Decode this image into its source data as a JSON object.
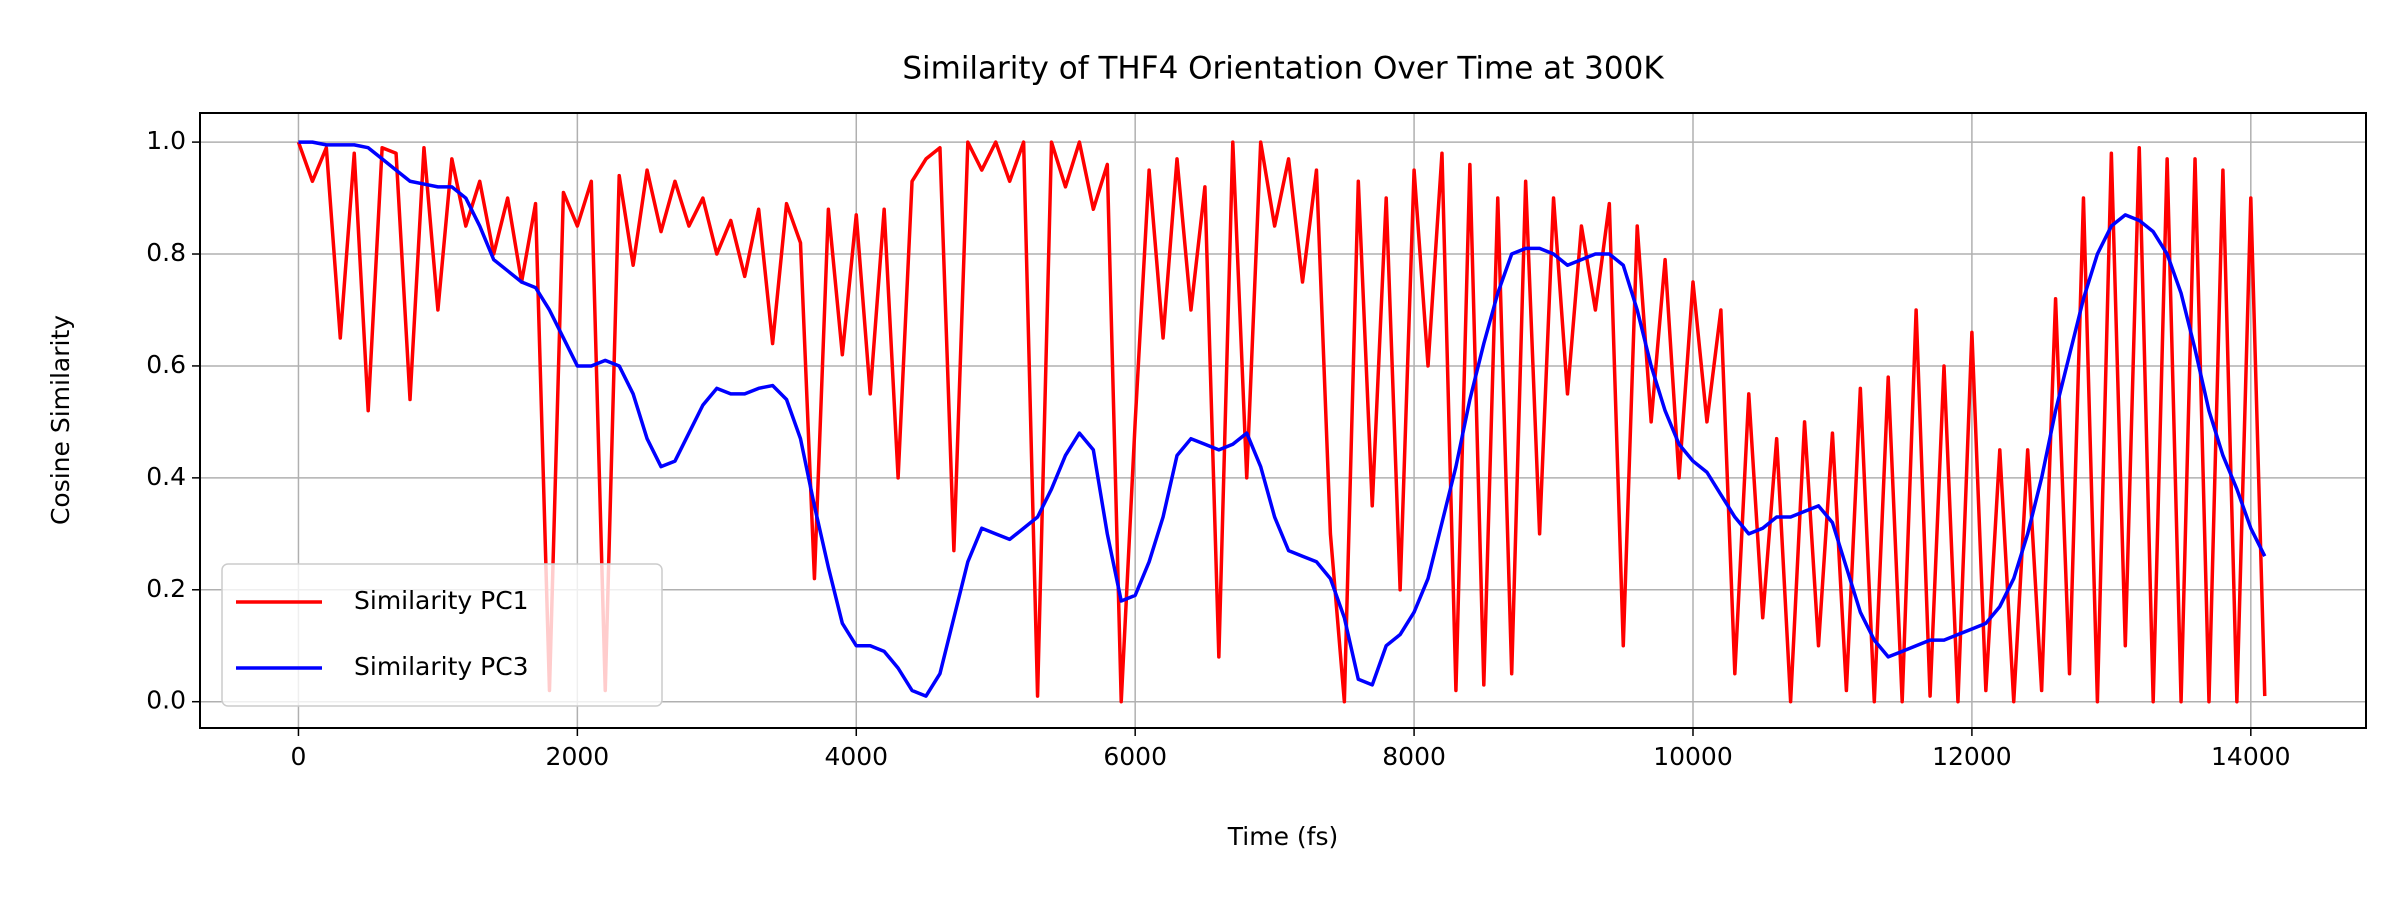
{
  "chart_data": {
    "type": "line",
    "title": "Similarity of THF4 Orientation Over Time at 300K",
    "x_label": "Time (fs)",
    "y_label": "Cosine Similarity",
    "x": [
      0,
      100,
      200,
      300,
      400,
      500,
      600,
      700,
      800,
      900,
      1000,
      1100,
      1200,
      1300,
      1400,
      1500,
      1600,
      1700,
      1800,
      1900,
      2000,
      2100,
      2200,
      2300,
      2400,
      2500,
      2600,
      2700,
      2800,
      2900,
      3000,
      3100,
      3200,
      3300,
      3400,
      3500,
      3600,
      3700,
      3800,
      3900,
      4000,
      4100,
      4200,
      4300,
      4400,
      4500,
      4600,
      4700,
      4800,
      4900,
      5000,
      5100,
      5200,
      5300,
      5400,
      5500,
      5600,
      5700,
      5800,
      5900,
      6000,
      6100,
      6200,
      6300,
      6400,
      6500,
      6600,
      6700,
      6800,
      6900,
      7000,
      7100,
      7200,
      7300,
      7400,
      7500,
      7600,
      7700,
      7800,
      7900,
      8000,
      8100,
      8200,
      8300,
      8400,
      8500,
      8600,
      8700,
      8800,
      8900,
      9000,
      9100,
      9200,
      9300,
      9400,
      9500,
      9600,
      9700,
      9800,
      9900,
      10000,
      10100,
      10200,
      10300,
      10400,
      10500,
      10600,
      10700,
      10800,
      10900,
      11000,
      11100,
      11200,
      11300,
      11400,
      11500,
      11600,
      11700,
      11800,
      11900,
      12000,
      12100,
      12200,
      12300,
      12400,
      12500,
      12600,
      12700,
      12800,
      12900,
      13000,
      13100,
      13200,
      13300,
      13400,
      13500,
      13600,
      13700,
      13800,
      13900,
      14000,
      14100
    ],
    "series": [
      {
        "name": "Similarity PC1",
        "color": "#ff0000",
        "values": [
          1.0,
          0.93,
          0.99,
          0.65,
          0.98,
          0.52,
          0.99,
          0.98,
          0.54,
          0.99,
          0.7,
          0.97,
          0.85,
          0.93,
          0.8,
          0.9,
          0.75,
          0.89,
          0.02,
          0.91,
          0.85,
          0.93,
          0.02,
          0.94,
          0.78,
          0.95,
          0.84,
          0.93,
          0.85,
          0.9,
          0.8,
          0.86,
          0.76,
          0.88,
          0.64,
          0.89,
          0.82,
          0.22,
          0.88,
          0.62,
          0.87,
          0.55,
          0.88,
          0.4,
          0.93,
          0.97,
          0.99,
          0.27,
          1.0,
          0.95,
          1.0,
          0.93,
          1.0,
          0.01,
          1.0,
          0.92,
          1.0,
          0.88,
          0.96,
          0.0,
          0.5,
          0.95,
          0.65,
          0.97,
          0.7,
          0.92,
          0.08,
          1.0,
          0.4,
          1.0,
          0.85,
          0.97,
          0.75,
          0.95,
          0.3,
          0.0,
          0.93,
          0.35,
          0.9,
          0.2,
          0.95,
          0.6,
          0.98,
          0.02,
          0.96,
          0.03,
          0.9,
          0.05,
          0.93,
          0.3,
          0.9,
          0.55,
          0.85,
          0.7,
          0.89,
          0.1,
          0.85,
          0.5,
          0.79,
          0.4,
          0.75,
          0.5,
          0.7,
          0.05,
          0.55,
          0.15,
          0.47,
          0.0,
          0.5,
          0.1,
          0.48,
          0.02,
          0.56,
          0.0,
          0.58,
          0.0,
          0.7,
          0.01,
          0.6,
          0.0,
          0.66,
          0.02,
          0.45,
          0.0,
          0.45,
          0.02,
          0.72,
          0.05,
          0.9,
          0.0,
          0.98,
          0.1,
          0.99,
          0.0,
          0.97,
          0.0,
          0.97,
          0.0,
          0.95,
          0.0,
          0.9,
          0.01
        ]
      },
      {
        "name": "Similarity PC3",
        "color": "#0000ff",
        "values": [
          1.0,
          1.0,
          0.995,
          0.995,
          0.995,
          0.99,
          0.97,
          0.95,
          0.93,
          0.925,
          0.92,
          0.92,
          0.9,
          0.85,
          0.79,
          0.77,
          0.75,
          0.74,
          0.7,
          0.65,
          0.6,
          0.6,
          0.61,
          0.6,
          0.55,
          0.47,
          0.42,
          0.43,
          0.48,
          0.53,
          0.56,
          0.55,
          0.55,
          0.56,
          0.565,
          0.54,
          0.47,
          0.35,
          0.24,
          0.14,
          0.1,
          0.1,
          0.09,
          0.06,
          0.02,
          0.01,
          0.05,
          0.15,
          0.25,
          0.31,
          0.3,
          0.29,
          0.31,
          0.33,
          0.38,
          0.44,
          0.48,
          0.45,
          0.3,
          0.18,
          0.19,
          0.25,
          0.33,
          0.44,
          0.47,
          0.46,
          0.45,
          0.46,
          0.48,
          0.42,
          0.33,
          0.27,
          0.26,
          0.25,
          0.22,
          0.15,
          0.04,
          0.03,
          0.1,
          0.12,
          0.16,
          0.22,
          0.32,
          0.42,
          0.54,
          0.64,
          0.73,
          0.8,
          0.81,
          0.81,
          0.8,
          0.78,
          0.79,
          0.8,
          0.8,
          0.78,
          0.7,
          0.6,
          0.52,
          0.46,
          0.43,
          0.41,
          0.37,
          0.33,
          0.3,
          0.31,
          0.33,
          0.33,
          0.34,
          0.35,
          0.32,
          0.24,
          0.16,
          0.11,
          0.08,
          0.09,
          0.1,
          0.11,
          0.11,
          0.12,
          0.13,
          0.14,
          0.17,
          0.22,
          0.3,
          0.4,
          0.52,
          0.62,
          0.72,
          0.8,
          0.85,
          0.87,
          0.86,
          0.84,
          0.8,
          0.73,
          0.63,
          0.52,
          0.44,
          0.38,
          0.31,
          0.26
        ]
      }
    ],
    "xlim": [
      -706,
      14826
    ],
    "xticks": [
      0,
      2000,
      4000,
      6000,
      8000,
      10000,
      12000,
      14000
    ],
    "ylim": [
      -0.047,
      1.052
    ],
    "yticks": [
      {
        "value": 0,
        "label": "0.0"
      },
      0.2,
      0.4,
      0.6,
      0.8,
      {
        "value": 1,
        "label": "1.0"
      }
    ],
    "grid": true,
    "legend": "lower left"
  }
}
